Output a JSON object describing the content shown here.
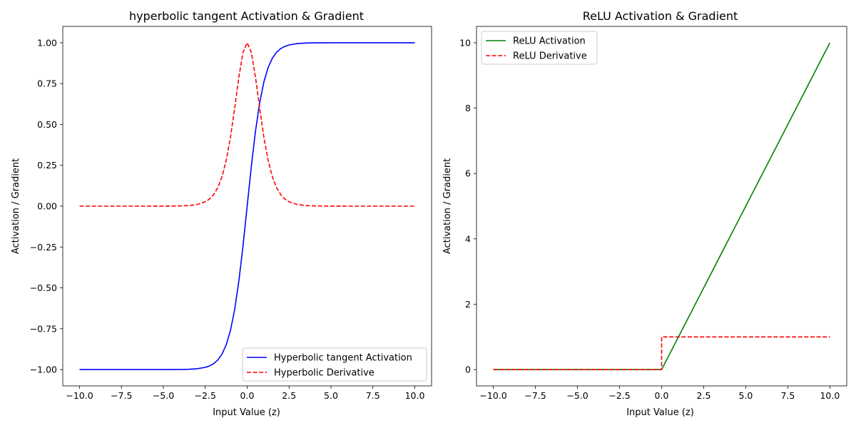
{
  "chart_data": [
    {
      "type": "line",
      "title": "hyperbolic tangent Activation & Gradient",
      "xlabel": "Input Value (z)",
      "ylabel": "Activation / Gradient",
      "xlim": [
        -11.0,
        11.0
      ],
      "ylim": [
        -1.1,
        1.1
      ],
      "x_ticks": [
        -10.0,
        -7.5,
        -5.0,
        -2.5,
        0.0,
        2.5,
        5.0,
        7.5,
        10.0
      ],
      "x_tick_labels": [
        "−10.0",
        "−7.5",
        "−5.0",
        "−2.5",
        "0.0",
        "2.5",
        "5.0",
        "7.5",
        "10.0"
      ],
      "y_ticks": [
        -1.0,
        -0.75,
        -0.5,
        -0.25,
        0.0,
        0.25,
        0.5,
        0.75,
        1.0
      ],
      "y_tick_labels": [
        "−1.00",
        "−0.75",
        "−0.50",
        "−0.25",
        "0.00",
        "0.25",
        "0.50",
        "0.75",
        "1.00"
      ],
      "grid": false,
      "legend_position": "lower-right",
      "series": [
        {
          "name": "Hyperbolic tangent Activation",
          "color": "#0000ff",
          "dashed": false,
          "x": [
            -10,
            -8,
            -6,
            -5,
            -4,
            -3.5,
            -3,
            -2.5,
            -2.25,
            -2,
            -1.75,
            -1.5,
            -1.25,
            -1,
            -0.75,
            -0.5,
            -0.25,
            0,
            0.25,
            0.5,
            0.75,
            1,
            1.25,
            1.5,
            1.75,
            2,
            2.25,
            2.5,
            3,
            3.5,
            4,
            5,
            6,
            8,
            10
          ],
          "y": [
            -1.0,
            -1.0,
            -1.0,
            -0.9999,
            -0.9993,
            -0.9982,
            -0.9951,
            -0.9866,
            -0.978,
            -0.964,
            -0.9414,
            -0.9051,
            -0.8483,
            -0.7616,
            -0.6351,
            -0.4621,
            -0.2449,
            0.0,
            0.2449,
            0.4621,
            0.6351,
            0.7616,
            0.8483,
            0.9051,
            0.9414,
            0.964,
            0.978,
            0.9866,
            0.9951,
            0.9982,
            0.9993,
            0.9999,
            1.0,
            1.0,
            1.0
          ]
        },
        {
          "name": "Hyperbolic Derivative",
          "color": "#ff0000",
          "dashed": true,
          "x": [
            -10,
            -8,
            -6,
            -5,
            -4,
            -3.5,
            -3,
            -2.5,
            -2.25,
            -2,
            -1.75,
            -1.5,
            -1.25,
            -1,
            -0.75,
            -0.5,
            -0.25,
            0,
            0.25,
            0.5,
            0.75,
            1,
            1.25,
            1.5,
            1.75,
            2,
            2.25,
            2.5,
            3,
            3.5,
            4,
            5,
            6,
            8,
            10
          ],
          "y": [
            0.0,
            0.0,
            0.0,
            0.0002,
            0.0013,
            0.0036,
            0.0099,
            0.0266,
            0.0435,
            0.0707,
            0.1138,
            0.1807,
            0.2805,
            0.42,
            0.5966,
            0.7864,
            0.94,
            1.0,
            0.94,
            0.7864,
            0.5966,
            0.42,
            0.2805,
            0.1807,
            0.1138,
            0.0707,
            0.0435,
            0.0266,
            0.0099,
            0.0036,
            0.0013,
            0.0002,
            0.0,
            0.0,
            0.0
          ]
        }
      ]
    },
    {
      "type": "line",
      "title": "ReLU Activation & Gradient",
      "xlabel": "Input Value (z)",
      "ylabel": "Activation / Gradient",
      "xlim": [
        -11.0,
        11.0
      ],
      "ylim": [
        -0.5,
        10.5
      ],
      "x_ticks": [
        -10.0,
        -7.5,
        -5.0,
        -2.5,
        0.0,
        2.5,
        5.0,
        7.5,
        10.0
      ],
      "x_tick_labels": [
        "−10.0",
        "−7.5",
        "−5.0",
        "−2.5",
        "0.0",
        "2.5",
        "5.0",
        "7.5",
        "10.0"
      ],
      "y_ticks": [
        0,
        2,
        4,
        6,
        8,
        10
      ],
      "y_tick_labels": [
        "0",
        "2",
        "4",
        "6",
        "8",
        "10"
      ],
      "grid": false,
      "legend_position": "upper-left",
      "series": [
        {
          "name": "ReLU Activation",
          "color": "#008000",
          "dashed": false,
          "x": [
            -10,
            0,
            10
          ],
          "y": [
            0,
            0,
            10
          ]
        },
        {
          "name": "ReLU Derivative",
          "color": "#ff0000",
          "dashed": true,
          "x": [
            -10,
            0,
            0,
            10
          ],
          "y": [
            0,
            0,
            1,
            1
          ]
        }
      ]
    }
  ]
}
